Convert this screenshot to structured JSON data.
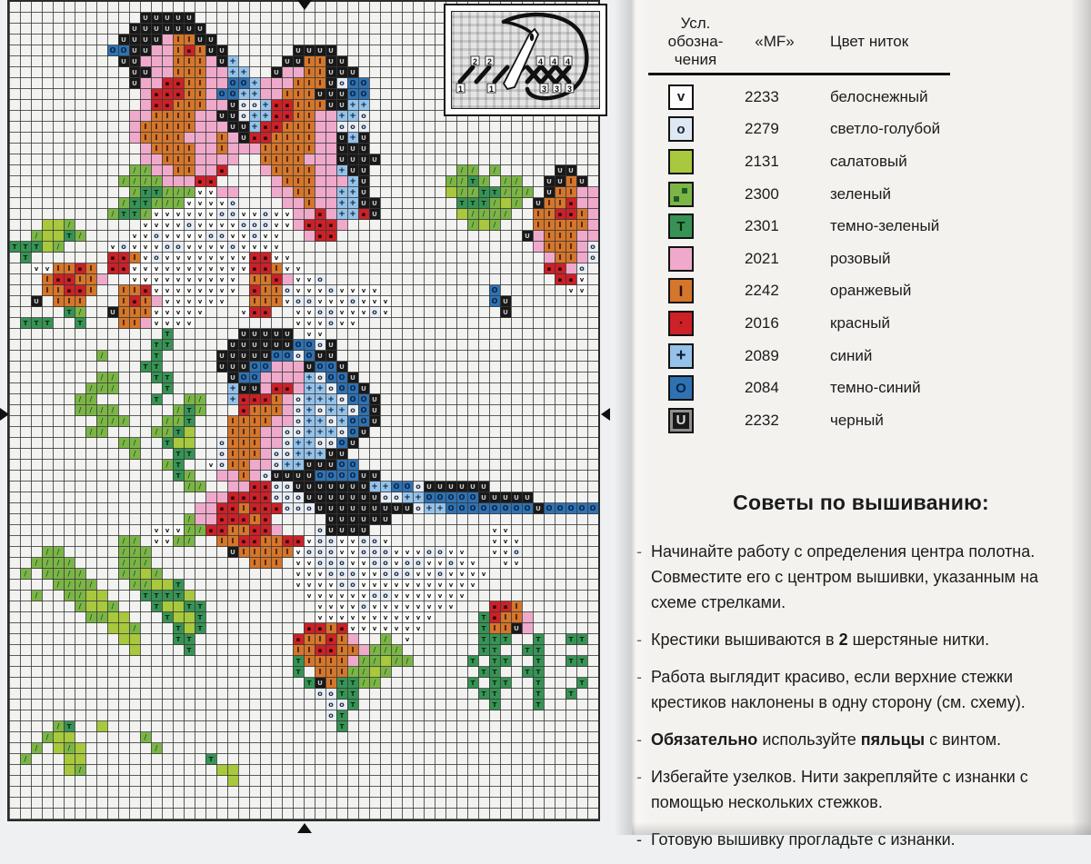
{
  "chart": {
    "cols": 54,
    "rows": 75,
    "palette": {
      "U": {
        "bg": "#191919",
        "glyph": "U",
        "fg": "#c9c9c9",
        "fs": "7px"
      },
      "I": {
        "bg": "#d4762b",
        "glyph": "I",
        "fg": "#331004",
        "fs": "8px"
      },
      "R": {
        "bg": "#cb2127",
        "glyph": "▪",
        "fg": "#25060a",
        "fs": "7px"
      },
      "P": {
        "bg": "#efaacb",
        "glyph": "",
        "fg": "#000000",
        "fs": "8px"
      },
      "G": {
        "bg": "#a8c83d",
        "glyph": "",
        "fg": "#000000",
        "fs": "8px"
      },
      "Z": {
        "bg": "#7cb546",
        "glyph": "/",
        "fg": "#1d5b26",
        "fs": "8px"
      },
      "T": {
        "bg": "#379355",
        "glyph": "T",
        "fg": "#07230f",
        "fs": "7px"
      },
      "W": {
        "bg": "#fbfbfa",
        "glyph": "v",
        "fg": "#1a1a1a",
        "fs": "7px"
      },
      "O": {
        "bg": "#e8edf4",
        "glyph": "o",
        "fg": "#1d2b42",
        "fs": "8px"
      },
      "B": {
        "bg": "#94c2e9",
        "glyph": "+",
        "fg": "#0d1f38",
        "fs": "9px"
      },
      "D": {
        "bg": "#2f72b2",
        "glyph": "O",
        "fg": "#09203f",
        "fs": "8px"
      }
    },
    "grid_rows": [
      "......................................................",
      "............UUUUU.....................................",
      "...........UUUUUUU....................................",
      "..........UUUUPIIUU...................................",
      ".........DDUUPPIRIUU......UUUU........................",
      "..........UUPPPIIIPUB....UUIIUU.......................",
      "...........UUPPIIIPPBB..UPPIIUUU......................",
      "...........UPPRRIIPPDDBPPPIIIUODD.....................",
      "............PRRRIIPDDBBPPIIIUUUDD.....................",
      "............PRRIIIPPUOOBRRIIIUUBB.....................",
      "...........PPIIIIPPUUOBBRRIIPPBBO.....................",
      "...........PIIIIIPPPUUBRRIIIPPOOO.....................",
      "...........PIIIIPPPIPURRIIIIPPUBU.....................",
      "............PIIIIPPIPPPIIIIIPPUUU.....................",
      "............PPIIIPPPP..IIIIPPPUUUU....................",
      "...........ZZPPIIPPR...PIIIIPPBUU........ZZ.Z.....UU..",
      "..........ZZZZPPPRR.....PIIIPPPBU.......ZZTZ.ZZ..UUIU.",
      "...........ZTTZZZWWPP...PPIIPPBBU.......GZZTTZZZ.UIIPP",
      "..........ZTTZZZWWWWO....PPIPPBBUU.......TTTZGZ.UIIRPP",
      ".........ZTTZWWWWWWOOWWOWWPPRPBBRU.......GZZZZ..IIRRIP",
      "...GGZ......WWWWOWWWWOOOWWPRRRP...........ZGZ...IIIIIP",
      "..ZGGTZ....WWOWWWWOOWWOWW..PRR.................UPIIIPP",
      "TTTGZ....WOWWWOOWWWWOWWWW.......................PIIIPO",
      ".T.......RRIWOWWWWWWWWRRWW.......................PIIPO",
      "..WWIIRI.RRWWWWWWWWWWWRRIWW......................RRPO.",
      "...IRRIIP..WWWWWWWWWW.IIRPWWO.....................RRW.",
      "...IIRRI..IIRWWWWWWWW.RIIOWWWOWWWW..........D......WW.",
      "..U.III...IRIPWWWWWW..IIIWOOWWWOWWW.........DU........",
      ".....TZ..UIIIWWWWW...WRR..WWOOWWWOW..........U........",
      ".TTT..T...IIPWWWW.........WWWOWW......................",
      "..............T......UUUUU.WW.........................",
      ".............TT.....UUUUUUDDOU........................",
      "........Z....T.....UUUUUDDODUU........................",
      "............TT.....UUUDDPPPUDDU.......................",
      "........ZZ...TT.....UDDPPPPBODDU......................",
      ".......ZZZ....T.....BUUPRRPBBODDU.....................",
      "......ZZ.....T..ZZ..BRRRIPOBBBODDU....................",
      "......ZZZZ.....ZTZ...RIIIPOBOBBODU....................",
      "........ZZZ...ZZT...IIIIPPOBBOBDDU....................",
      ".......ZZ....ZZTG...IIIPPOOBBBODU.....................",
      "..........ZZ..TGG..OIIIPPOBBOODU......................",
      "...........Z...TT..OIIIPOOBBBUU.......................",
      "..............ZT..WOIIPPOBBUUUDD......................",
      "...............TZ..PPIPOUUUUDDDDUU....................",
      "................ZZ..PPRROOUUUUUUUBBDDOUUUUUU..........",
      "..................PPRRRROOOUUUUUUUOOBBDDDDDUUUUU......",
      ".................PPRRIRRROOOUUUUUUUUUOBBDDDDDDDDUDDDDD",
      "................ZPPRRRIR.....UUUUUU...................",
      ".............WWWZZRRIIRRP...OUUUU...........WW........",
      "..........ZZ.WWZZ..IIRRIIRRWOOWWOOW.........WWW.......",
      "...ZZ.....ZZZ.......UIIIIIWOOOWWOOOWWWOOWW..WWO.......",
      "..ZZZZ....ZZZ.........III.WWOOOWWOOWOOWWOWW..WW.......",
      ".Z.ZZZZ...ZZGZ............WWWOOOWWOOOWWOWWWW..........",
      "....ZZZZ...ZZGGT..........WWWWOOWWWWWWWWWWW...........",
      "..Z..ZZGG...TTTTG..........WWWWWWOOWWWWWWW............",
      "......ZGGZ...TGGTT..........WWWWOWWWWWWWW...RRI.......",
      ".......ZZGG...TGGT..........WWWWWWWWWWW....TRIIP......",
      ".........GGZ...TGT.........RRIRWWWWWWW.....TIIUP......",
      "..........GG...TT.........RIIRIP..Z.W......TTT..T..TT.",
      "...........G....T.........IIRRIIPZZZ.......TT..TT.....",
      "..........................TIIIIPZZGZZ.....T.TT..T..TT.",
      "..........................T.IIIZZGZ........TT..TT.....",
      "...........................TUITTZZ........T.TT..T...T.",
      "............................OOTT...........TT...T..T..",
      ".............................OOT............T...T.....",
      ".............................OT.......................",
      "....ZT..G.....................T.......................",
      "...ZGG......Z.........................................",
      "..Z.GZG......Z........................................",
      ".Z...GG...........T...................................",
      ".....GZ............GG.................................",
      "....................G.................................",
      "......................................................",
      "......................................................",
      "......................................................"
    ]
  },
  "inset": {
    "top_numbers": [
      "2",
      "2",
      "4",
      "4",
      "4"
    ],
    "bottom_numbers": [
      "1",
      "1",
      "3",
      "3",
      "3"
    ]
  },
  "legend": {
    "header": {
      "line1": "Усл.",
      "line2": "обозна-",
      "line3": "чения",
      "col2": "«MF»",
      "col3": "Цвет ниток"
    },
    "rows": [
      {
        "symbol": "W",
        "code": "2233",
        "name": "белоснежный"
      },
      {
        "symbol": "O",
        "code": "2279",
        "name": "светло-голубой"
      },
      {
        "symbol": "G",
        "code": "2131",
        "name": "салатовый"
      },
      {
        "symbol": "Z",
        "code": "2300",
        "name": "зеленый"
      },
      {
        "symbol": "T",
        "code": "2301",
        "name": "темно-зеленый"
      },
      {
        "symbol": "P",
        "code": "2021",
        "name": "розовый"
      },
      {
        "symbol": "I",
        "code": "2242",
        "name": "оранжевый"
      },
      {
        "symbol": "R",
        "code": "2016",
        "name": "красный"
      },
      {
        "symbol": "B",
        "code": "2089",
        "name": "синий"
      },
      {
        "symbol": "D",
        "code": "2084",
        "name": "темно-синий"
      },
      {
        "symbol": "U",
        "code": "2232",
        "name": "черный"
      }
    ]
  },
  "tips": {
    "title": "Советы по вышиванию:",
    "items": [
      [
        {
          "text": "Начинайте работу с определения центра полотна. Совместите его с центром вышивки, указанным на схеме стрелками.",
          "bold": false
        }
      ],
      [
        {
          "text": "Крестики вышиваются в ",
          "bold": false
        },
        {
          "text": "2",
          "bold": true
        },
        {
          "text": " шерстяные нитки.",
          "bold": false
        }
      ],
      [
        {
          "text": "Работа выглядит красиво, если верхние стежки крестиков наклонены в одну сторону (см. схему).",
          "bold": false
        }
      ],
      [
        {
          "text": "Обязательно",
          "bold": true
        },
        {
          "text": " используйте ",
          "bold": false
        },
        {
          "text": "пяльцы",
          "bold": true
        },
        {
          "text": " с винтом.",
          "bold": false
        }
      ],
      [
        {
          "text": "Избегайте узелков. Нити закрепляйте с изнанки с помощью нескольких стежков.",
          "bold": false
        }
      ],
      [
        {
          "text": "Готовую вышивку прогладьте с изнанки.",
          "bold": false
        }
      ]
    ]
  }
}
